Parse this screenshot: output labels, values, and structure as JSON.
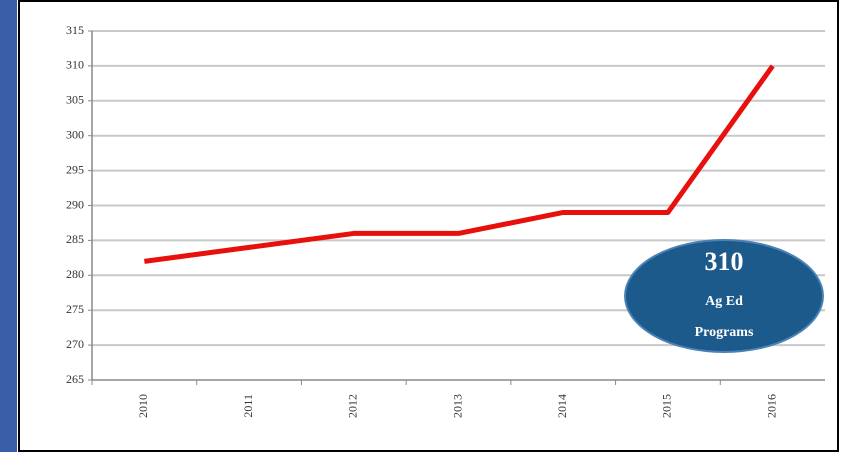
{
  "chart_data": {
    "type": "line",
    "categories": [
      "2010",
      "2011",
      "2012",
      "2013",
      "2014",
      "2015",
      "2016"
    ],
    "values": [
      282,
      284,
      286,
      286,
      289,
      289,
      310
    ],
    "color": "#e8100c",
    "ylim": [
      265,
      315
    ],
    "yticks": [
      265,
      270,
      275,
      280,
      285,
      290,
      295,
      300,
      305,
      310,
      315
    ],
    "grid": true,
    "annotation": [
      "310",
      "Ag Ed",
      "Programs"
    ]
  }
}
